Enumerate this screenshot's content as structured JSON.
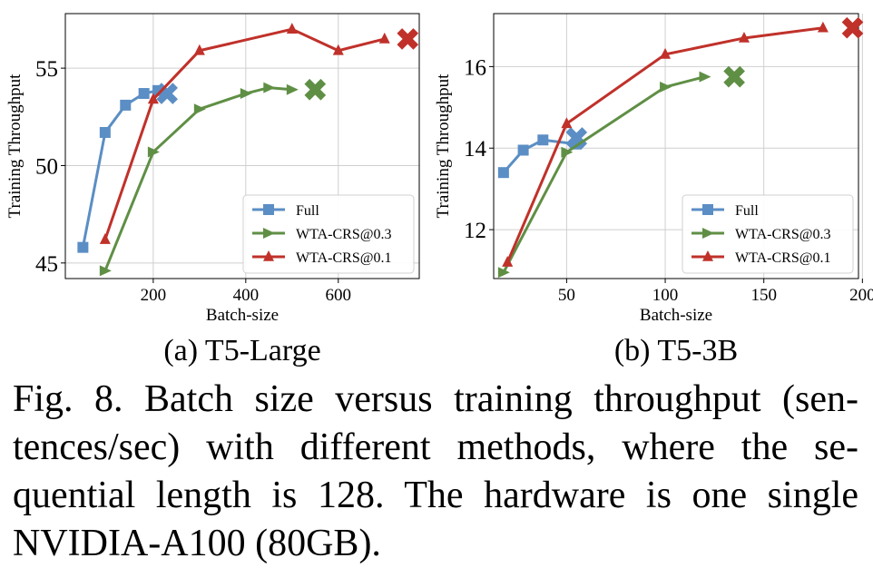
{
  "charts": [
    {
      "subcaption": "(a) T5-Large",
      "xlabel": "Batch-size",
      "ylabel": "Training Throughput",
      "xticks": [
        "200",
        "400",
        "600"
      ],
      "yticks": [
        "45",
        "50",
        "55"
      ],
      "legend": [
        "Full",
        "WTA-CRS@0.3",
        "WTA-CRS@0.1"
      ]
    },
    {
      "subcaption": "(b) T5-3B",
      "xlabel": "Batch-size",
      "ylabel": "Training Throughput",
      "xticks": [
        "50",
        "100",
        "150",
        "200"
      ],
      "yticks": [
        "12",
        "14",
        "16"
      ],
      "legend": [
        "Full",
        "WTA-CRS@0.3",
        "WTA-CRS@0.1"
      ]
    }
  ],
  "caption_lines": [
    "Fig. 8.  Batch size versus training throughput (sen-",
    "tences/sec) with different methods, where the se-",
    "quential length is 128. The hardware is one single",
    "NVIDIA-A100 (80GB)."
  ],
  "colors": {
    "full": "#5b8ec4",
    "wta03": "#5f8f45",
    "wta01": "#c0312a",
    "grid": "#cfcfcf"
  },
  "chart_data": [
    {
      "type": "line",
      "xlabel": "Batch-size",
      "ylabel": "Training Throughput",
      "xlim": [
        10,
        775
      ],
      "ylim": [
        44.2,
        57.8
      ],
      "xticks": [
        200,
        400,
        600
      ],
      "yticks": [
        45,
        50,
        55
      ],
      "grid": true,
      "legend_position": "lower-right",
      "series": [
        {
          "name": "Full",
          "marker": "square",
          "oom_x": 230,
          "oom_y": 53.7,
          "x": [
            48,
            96,
            140,
            180,
            210
          ],
          "y": [
            45.8,
            51.7,
            53.1,
            53.7,
            53.85
          ]
        },
        {
          "name": "WTA-CRS@0.3",
          "marker": "triangle-right",
          "oom_x": 550,
          "oom_y": 53.9,
          "x": [
            96,
            200,
            300,
            400,
            450,
            500
          ],
          "y": [
            44.6,
            50.7,
            52.9,
            53.7,
            54.0,
            53.9
          ]
        },
        {
          "name": "WTA-CRS@0.1",
          "marker": "triangle-up",
          "oom_x": 750,
          "oom_y": 56.5,
          "x": [
            96,
            200,
            300,
            500,
            600,
            700
          ],
          "y": [
            46.2,
            53.4,
            55.9,
            57.0,
            55.9,
            56.5
          ]
        }
      ]
    },
    {
      "type": "line",
      "xlabel": "Batch-size",
      "ylabel": "Training Throughput",
      "xlim": [
        13,
        198
      ],
      "ylim": [
        10.8,
        17.3
      ],
      "xticks": [
        50,
        100,
        150,
        200
      ],
      "yticks": [
        12,
        14,
        16
      ],
      "grid": true,
      "legend_position": "lower-right",
      "series": [
        {
          "name": "Full",
          "marker": "square",
          "oom_x": 55,
          "oom_y": 14.25,
          "x": [
            18,
            28,
            38,
            55
          ],
          "y": [
            13.4,
            13.95,
            14.2,
            14.1
          ]
        },
        {
          "name": "WTA-CRS@0.3",
          "marker": "triangle-right",
          "oom_x": 135,
          "oom_y": 15.75,
          "x": [
            18,
            50,
            100,
            120
          ],
          "y": [
            10.95,
            13.9,
            15.5,
            15.75
          ]
        },
        {
          "name": "WTA-CRS@0.1",
          "marker": "triangle-up",
          "oom_x": 195,
          "oom_y": 16.95,
          "x": [
            20,
            50,
            100,
            140,
            180
          ],
          "y": [
            11.2,
            14.6,
            16.3,
            16.7,
            16.95
          ]
        }
      ]
    }
  ]
}
